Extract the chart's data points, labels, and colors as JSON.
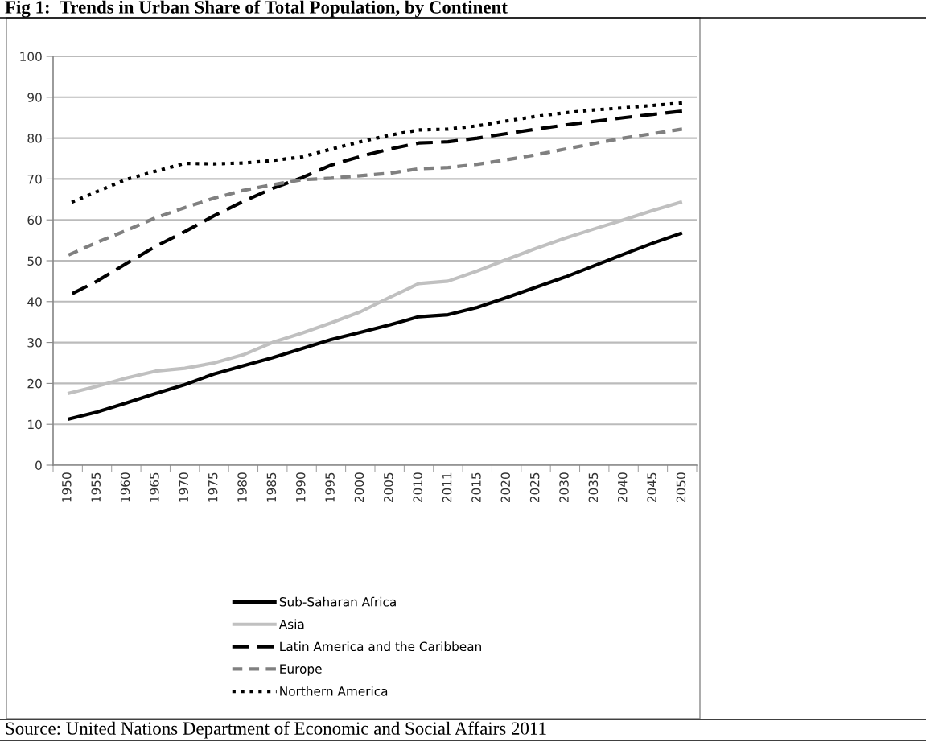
{
  "chart_data": {
    "type": "line",
    "title": "Fig 1:  Trends in Urban Share of Total Population, by Continent",
    "categories": [
      "1950",
      "1955",
      "1960",
      "1965",
      "1970",
      "1975",
      "1980",
      "1985",
      "1990",
      "1995",
      "2000",
      "2005",
      "2010",
      "2011",
      "2015",
      "2020",
      "2025",
      "2030",
      "2035",
      "2040",
      "2045",
      "2050"
    ],
    "series": [
      {
        "name": "Sub-Saharan Africa",
        "color": "#000000",
        "line_style": "solid",
        "values": [
          11.2,
          13,
          15.2,
          17.5,
          19.7,
          22.3,
          24.3,
          26.3,
          28.5,
          30.7,
          32.5,
          34.3,
          36.3,
          36.8,
          38.6,
          41,
          43.5,
          46,
          48.8,
          51.6,
          54.3,
          56.8
        ]
      },
      {
        "name": "Asia",
        "color": "#c0c0c0",
        "line_style": "solid",
        "values": [
          17.5,
          19.3,
          21.3,
          23,
          23.7,
          25,
          27,
          30,
          32.3,
          34.8,
          37.5,
          41,
          44.4,
          45,
          47.5,
          50.3,
          53,
          55.5,
          57.8,
          60,
          62.3,
          64.4
        ]
      },
      {
        "name": "Latin America and the Caribbean",
        "color": "#000000",
        "line_style": "dashed",
        "values": [
          41.4,
          45,
          49.3,
          53.5,
          57.1,
          61,
          64.5,
          67.7,
          70.3,
          73.4,
          75.5,
          77.3,
          78.8,
          79.1,
          80,
          81.1,
          82.2,
          83.2,
          84.1,
          85,
          85.8,
          86.6
        ]
      },
      {
        "name": "Europe",
        "color": "#808080",
        "line_style": "dashed",
        "values": [
          51.3,
          54.5,
          57.4,
          60.5,
          63,
          65.3,
          67.2,
          68.6,
          69.8,
          70.2,
          70.8,
          71.4,
          72.5,
          72.8,
          73.6,
          74.7,
          75.9,
          77.3,
          78.7,
          80,
          81.1,
          82.2
        ]
      },
      {
        "name": "Northern America",
        "color": "#000000",
        "line_style": "dotted",
        "values": [
          63.9,
          66.9,
          69.9,
          71.9,
          73.8,
          73.7,
          73.9,
          74.5,
          75.4,
          77.3,
          79.1,
          80.7,
          82.0,
          82.2,
          83.0,
          84.2,
          85.3,
          86.2,
          86.9,
          87.4,
          88.0,
          88.6
        ]
      }
    ],
    "ylim": [
      0,
      100
    ],
    "yticks": [
      0,
      10,
      20,
      30,
      40,
      50,
      60,
      70,
      80,
      90,
      100
    ],
    "grid": "y",
    "legend": "bottom",
    "marker": "none",
    "annotations": [
      "Source: United Nations Department of Economic and Social Affairs 2011"
    ]
  }
}
